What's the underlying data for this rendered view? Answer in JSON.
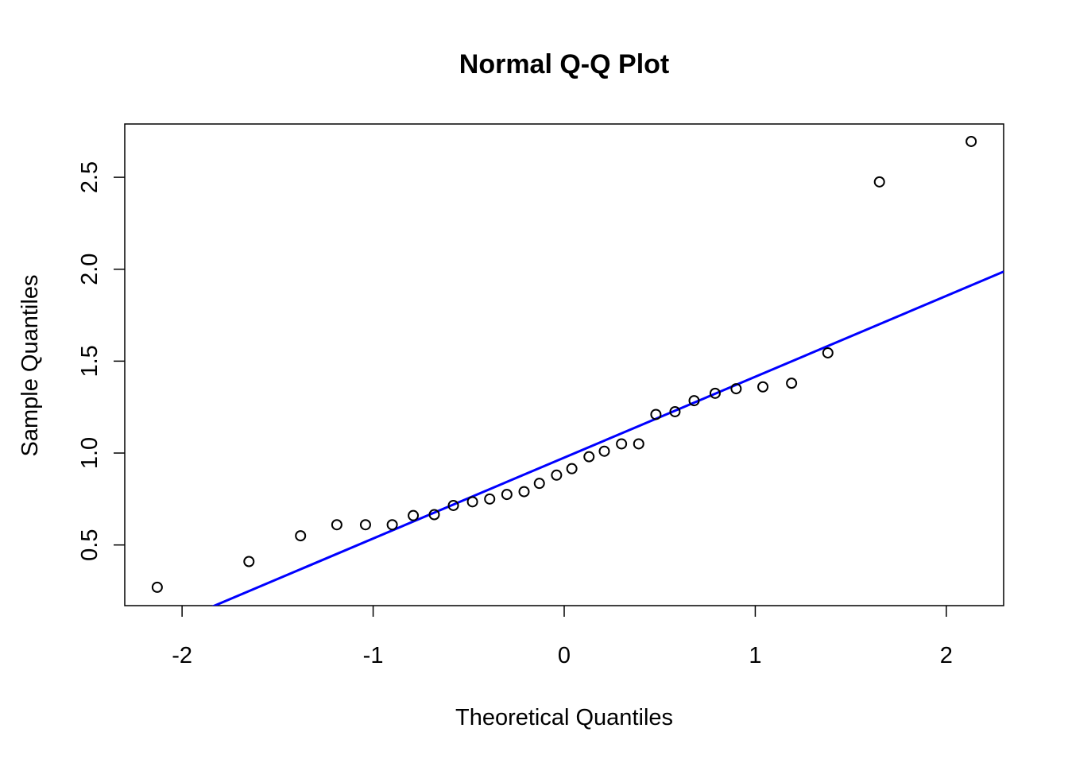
{
  "chart_data": {
    "type": "scatter",
    "title": "Normal Q-Q Plot",
    "xlabel": "Theoretical Quantiles",
    "ylabel": "Sample Quantiles",
    "xlim": [
      -2.3,
      2.3
    ],
    "ylim": [
      0.17,
      2.79
    ],
    "x_ticks": [
      -2,
      -1,
      0,
      1,
      2
    ],
    "x_tick_labels": [
      "-2",
      "-1",
      "0",
      "1",
      "2"
    ],
    "y_ticks": [
      0.5,
      1.0,
      1.5,
      2.0,
      2.5
    ],
    "y_tick_labels": [
      "0.5",
      "1.0",
      "1.5",
      "2.0",
      "2.5"
    ],
    "grid": false,
    "point_color": "#000000",
    "line_color": "#0000ff",
    "points": [
      {
        "x": -2.13,
        "y": 0.27
      },
      {
        "x": -1.65,
        "y": 0.41
      },
      {
        "x": -1.38,
        "y": 0.55
      },
      {
        "x": -1.19,
        "y": 0.61
      },
      {
        "x": -1.04,
        "y": 0.61
      },
      {
        "x": -0.9,
        "y": 0.61
      },
      {
        "x": -0.79,
        "y": 0.66
      },
      {
        "x": -0.68,
        "y": 0.665
      },
      {
        "x": -0.58,
        "y": 0.715
      },
      {
        "x": -0.48,
        "y": 0.735
      },
      {
        "x": -0.39,
        "y": 0.75
      },
      {
        "x": -0.3,
        "y": 0.775
      },
      {
        "x": -0.21,
        "y": 0.79
      },
      {
        "x": -0.13,
        "y": 0.835
      },
      {
        "x": -0.04,
        "y": 0.88
      },
      {
        "x": 0.04,
        "y": 0.915
      },
      {
        "x": 0.13,
        "y": 0.98
      },
      {
        "x": 0.21,
        "y": 1.01
      },
      {
        "x": 0.3,
        "y": 1.05
      },
      {
        "x": 0.39,
        "y": 1.05
      },
      {
        "x": 0.48,
        "y": 1.21
      },
      {
        "x": 0.58,
        "y": 1.225
      },
      {
        "x": 0.68,
        "y": 1.285
      },
      {
        "x": 0.79,
        "y": 1.325
      },
      {
        "x": 0.9,
        "y": 1.35
      },
      {
        "x": 1.04,
        "y": 1.36
      },
      {
        "x": 1.19,
        "y": 1.38
      },
      {
        "x": 1.38,
        "y": 1.545
      },
      {
        "x": 1.65,
        "y": 2.475
      },
      {
        "x": 2.13,
        "y": 2.695
      }
    ],
    "reference_line": {
      "intercept": 0.975,
      "slope": 0.44
    }
  }
}
